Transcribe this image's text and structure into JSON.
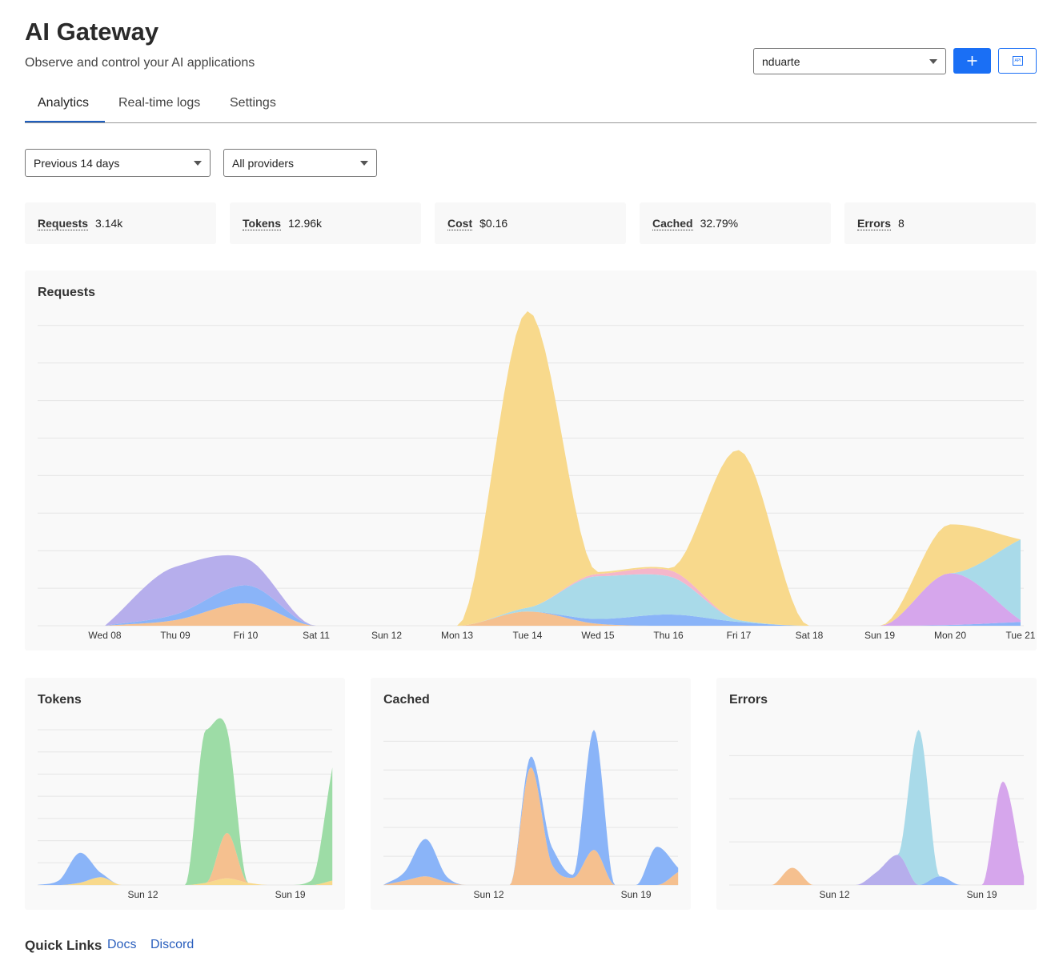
{
  "header": {
    "title": "AI Gateway",
    "subtitle": "Observe and control your AI applications"
  },
  "account_select": "nduarte",
  "icon_label": "API",
  "tabs": [
    "Analytics",
    "Real-time logs",
    "Settings"
  ],
  "filters": [
    "Previous 14 days",
    "All providers"
  ],
  "metrics": [
    {
      "label": "Requests",
      "value": "3.14k"
    },
    {
      "label": "Tokens",
      "value": "12.96k"
    },
    {
      "label": "Cost",
      "value": "$0.16"
    },
    {
      "label": "Cached",
      "value": "32.79%"
    },
    {
      "label": "Errors",
      "value": "8"
    }
  ],
  "chart_data": [
    {
      "type": "area",
      "title": "Requests",
      "stacked": true,
      "grid": true,
      "categories": [
        "Wed 08",
        "Thu 09",
        "Fri 10",
        "Sat 11",
        "Sun 12",
        "Mon 13",
        "Tue 14",
        "Wed 15",
        "Thu 16",
        "Fri 17",
        "Sat 18",
        "Sun 19",
        "Mon 20",
        "Tue 21"
      ],
      "ylim": [
        0,
        8.4
      ],
      "yticks": [
        0,
        1,
        2,
        3,
        4,
        5,
        6,
        7,
        8
      ],
      "series": [
        {
          "color": "#f5c08f",
          "values": [
            0,
            0.15,
            0.6,
            0,
            0,
            0,
            0.38,
            0.05,
            0,
            0,
            0,
            0,
            0,
            0
          ]
        },
        {
          "color": "#8ab4f8",
          "values": [
            0,
            0.15,
            0.48,
            0,
            0,
            0,
            0,
            0.13,
            0.3,
            0.1,
            0,
            0,
            0.02,
            0.1
          ]
        },
        {
          "color": "#b6aeec",
          "values": [
            0,
            1.27,
            0.72,
            0,
            0,
            0,
            0,
            0,
            0,
            0,
            0,
            0,
            0,
            0
          ]
        },
        {
          "color": "#d6a6ec",
          "values": [
            0,
            0,
            0,
            0,
            0,
            0,
            0,
            0,
            0,
            0,
            0,
            0,
            1.38,
            0.05
          ]
        },
        {
          "color": "#a9dae9",
          "values": [
            0,
            0,
            0,
            0,
            0,
            0,
            0.1,
            1.14,
            1.02,
            0.05,
            0,
            0,
            0,
            2.15
          ]
        },
        {
          "color": "#f4b6ca",
          "values": [
            0,
            0,
            0,
            0,
            0,
            0,
            0,
            0.06,
            0.17,
            0,
            0,
            0,
            0,
            0
          ]
        },
        {
          "color": "#f8d98c",
          "values": [
            0,
            0,
            0,
            0,
            0,
            0,
            7.9,
            0.05,
            0.04,
            4.53,
            0,
            0,
            1.3,
            0
          ]
        }
      ]
    },
    {
      "type": "area",
      "title": "Tokens",
      "stacked": true,
      "grid": true,
      "categories": [
        null,
        null,
        null,
        null,
        null,
        "Sun 12",
        null,
        null,
        null,
        null,
        null,
        null,
        "Sun 19",
        null,
        null
      ],
      "ylim": [
        0,
        7
      ],
      "yticks": [
        0,
        1,
        2,
        3,
        4,
        5,
        6,
        7
      ],
      "series": [
        {
          "color": "#f8d98c",
          "values": [
            0,
            0,
            0.1,
            0.35,
            0,
            0,
            0,
            0,
            0.1,
            0.3,
            0.1,
            0,
            0,
            0,
            0.2
          ]
        },
        {
          "color": "#8ab4f8",
          "values": [
            0,
            0.2,
            1.35,
            0.2,
            0,
            0,
            0,
            0,
            0,
            0,
            0,
            0,
            0,
            0,
            0
          ]
        },
        {
          "color": "#f5c08f",
          "values": [
            0,
            0,
            0,
            0,
            0,
            0,
            0,
            0,
            0,
            2.05,
            0,
            0,
            0,
            0,
            0
          ]
        },
        {
          "color": "#9ddca6",
          "values": [
            0,
            0,
            0,
            0,
            0,
            0,
            0,
            0,
            6.9,
            4.65,
            0,
            0,
            0,
            0.2,
            5.1
          ]
        }
      ]
    },
    {
      "type": "area",
      "title": "Cached",
      "stacked": true,
      "grid": true,
      "categories": [
        null,
        null,
        null,
        null,
        null,
        "Sun 12",
        null,
        null,
        null,
        null,
        null,
        null,
        "Sun 19",
        null,
        null
      ],
      "ylim": [
        0,
        5.4
      ],
      "yticks": [
        0,
        1,
        2,
        3,
        4,
        5
      ],
      "series": [
        {
          "color": "#f5c08f",
          "values": [
            0,
            0.15,
            0.3,
            0.1,
            0,
            0,
            0,
            4.1,
            0.72,
            0.25,
            1.22,
            0,
            0,
            0,
            0.45
          ]
        },
        {
          "color": "#8ab4f8",
          "values": [
            0,
            0.3,
            1.3,
            0.2,
            0,
            0,
            0,
            0.37,
            0.6,
            0.1,
            4.18,
            0,
            0,
            1.33,
            0.15
          ]
        }
      ]
    },
    {
      "type": "area",
      "title": "Errors",
      "stacked": true,
      "grid": true,
      "categories": [
        null,
        null,
        null,
        null,
        null,
        "Sun 12",
        null,
        null,
        null,
        null,
        null,
        null,
        "Sun 19",
        null,
        null
      ],
      "ylim": [
        0,
        3.6
      ],
      "yticks": [
        0,
        1,
        2,
        3
      ],
      "series": [
        {
          "color": "#f5c08f",
          "values": [
            0,
            0,
            0,
            0.4,
            0,
            0,
            0,
            0,
            0,
            0,
            0,
            0,
            0,
            0,
            0
          ]
        },
        {
          "color": "#8ab4f8",
          "values": [
            0,
            0,
            0,
            0,
            0,
            0,
            0,
            0,
            0,
            0,
            0.2,
            0,
            0,
            0,
            0
          ]
        },
        {
          "color": "#b6aeec",
          "values": [
            0,
            0,
            0,
            0,
            0,
            0,
            0,
            0.3,
            0.7,
            0,
            0,
            0,
            0,
            0,
            0
          ]
        },
        {
          "color": "#a9dae9",
          "values": [
            0,
            0,
            0,
            0,
            0,
            0,
            0,
            0,
            0,
            3.6,
            0,
            0,
            0,
            0,
            0
          ]
        },
        {
          "color": "#d6a6ec",
          "values": [
            0,
            0,
            0,
            0,
            0,
            0,
            0,
            0,
            0,
            0,
            0,
            0,
            0,
            2.4,
            0.2
          ]
        }
      ]
    }
  ],
  "quick_links": {
    "title": "Quick Links",
    "links": [
      "Docs",
      "Discord"
    ]
  }
}
